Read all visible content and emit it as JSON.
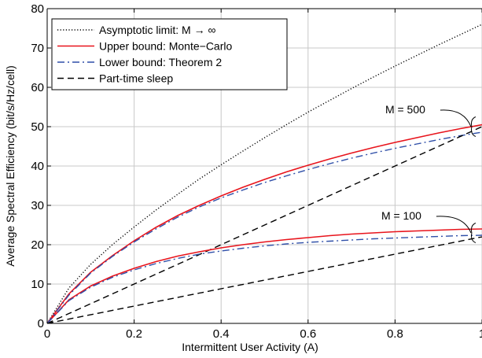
{
  "chart_data": {
    "type": "line",
    "xlabel": "Intermittent User Activity (A)",
    "ylabel": "Average Spectral Efficiency (bit/s/Hz/cell)",
    "xlim": [
      0,
      1
    ],
    "ylim": [
      0,
      80
    ],
    "x_ticks": [
      "0",
      "0.2",
      "0.4",
      "0.6",
      "0.8",
      "1"
    ],
    "y_ticks": [
      "0",
      "10",
      "20",
      "30",
      "40",
      "50",
      "60",
      "70",
      "80"
    ],
    "grid": true,
    "legend_position": "top-left",
    "legend": [
      {
        "label": "Asymptotic limit: M → ∞",
        "color": "#000000",
        "style": "dotted"
      },
      {
        "label": "Upper bound: Monte−Carlo",
        "color": "#e8141c",
        "style": "solid"
      },
      {
        "label": "Lower bound: Theorem 2",
        "color": "#2f4fa8",
        "style": "dashdot"
      },
      {
        "label": "Part-time sleep",
        "color": "#000000",
        "style": "dashed"
      }
    ],
    "annotations": [
      {
        "text": "M = 500",
        "x": 0.98,
        "y": 50
      },
      {
        "text": "M = 100",
        "x": 0.98,
        "y": 23
      }
    ],
    "series": [
      {
        "name": "Asymptotic limit: M → ∞",
        "color": "#000000",
        "style": "dotted",
        "x": [
          0,
          0.05,
          0.1,
          0.15,
          0.2,
          0.25,
          0.3,
          0.35,
          0.4,
          0.45,
          0.5,
          0.55,
          0.6,
          0.65,
          0.7,
          0.75,
          0.8,
          0.85,
          0.9,
          0.95,
          1.0
        ],
        "y": [
          0,
          9.0,
          15.0,
          20.0,
          24.5,
          28.8,
          32.8,
          36.7,
          40.3,
          43.8,
          47.2,
          50.5,
          53.7,
          56.7,
          59.7,
          62.6,
          65.4,
          68.1,
          70.8,
          73.4,
          76.0
        ]
      },
      {
        "name": "Upper bound: Monte−Carlo (M = 500)",
        "color": "#e8141c",
        "style": "solid",
        "x": [
          0,
          0.05,
          0.1,
          0.15,
          0.2,
          0.25,
          0.3,
          0.35,
          0.4,
          0.45,
          0.5,
          0.55,
          0.6,
          0.65,
          0.7,
          0.75,
          0.8,
          0.85,
          0.9,
          0.95,
          1.0
        ],
        "y": [
          0,
          7.5,
          13.0,
          17.2,
          21.0,
          24.4,
          27.4,
          30.0,
          32.4,
          34.6,
          36.6,
          38.5,
          40.2,
          41.8,
          43.3,
          44.7,
          46.0,
          47.2,
          48.4,
          49.5,
          50.5
        ]
      },
      {
        "name": "Lower bound: Theorem 2 (M = 500)",
        "color": "#2f4fa8",
        "style": "dashdot",
        "x": [
          0,
          0.05,
          0.1,
          0.15,
          0.2,
          0.25,
          0.3,
          0.35,
          0.4,
          0.45,
          0.5,
          0.55,
          0.6,
          0.65,
          0.7,
          0.75,
          0.8,
          0.85,
          0.9,
          0.95,
          1.0
        ],
        "y": [
          0,
          7.2,
          12.8,
          17.0,
          20.7,
          24.0,
          27.0,
          29.6,
          31.9,
          33.9,
          35.8,
          37.5,
          39.1,
          40.6,
          42.0,
          43.3,
          44.5,
          45.6,
          46.7,
          47.7,
          48.6
        ]
      },
      {
        "name": "Part-time sleep (M = 500)",
        "color": "#000000",
        "style": "dashed",
        "x": [
          0,
          0.2,
          0.4,
          0.6,
          0.8,
          1.0
        ],
        "y": [
          0,
          10.0,
          20.0,
          30.0,
          40.0,
          50.0
        ]
      },
      {
        "name": "Upper bound: Monte−Carlo (M = 100)",
        "color": "#e8141c",
        "style": "solid",
        "x": [
          0,
          0.05,
          0.1,
          0.15,
          0.2,
          0.25,
          0.3,
          0.35,
          0.4,
          0.45,
          0.5,
          0.55,
          0.6,
          0.65,
          0.7,
          0.75,
          0.8,
          0.85,
          0.9,
          0.95,
          1.0
        ],
        "y": [
          0,
          6.0,
          9.5,
          12.0,
          14.0,
          15.7,
          17.1,
          18.2,
          19.2,
          20.0,
          20.7,
          21.3,
          21.8,
          22.3,
          22.7,
          23.0,
          23.3,
          23.5,
          23.7,
          23.9,
          24.0
        ]
      },
      {
        "name": "Lower bound: Theorem 2 (M = 100)",
        "color": "#2f4fa8",
        "style": "dashdot",
        "x": [
          0,
          0.05,
          0.1,
          0.15,
          0.2,
          0.25,
          0.3,
          0.35,
          0.4,
          0.45,
          0.5,
          0.55,
          0.6,
          0.65,
          0.7,
          0.75,
          0.8,
          0.85,
          0.9,
          0.95,
          1.0
        ],
        "y": [
          0,
          5.8,
          9.2,
          11.7,
          13.6,
          15.2,
          16.5,
          17.6,
          18.4,
          19.1,
          19.7,
          20.2,
          20.6,
          20.9,
          21.2,
          21.5,
          21.7,
          21.9,
          22.1,
          22.3,
          22.4
        ]
      },
      {
        "name": "Part-time sleep (M = 100)",
        "color": "#000000",
        "style": "dashed",
        "x": [
          0,
          0.2,
          0.4,
          0.6,
          0.8,
          1.0
        ],
        "y": [
          0,
          4.4,
          8.8,
          13.2,
          17.6,
          22.0
        ]
      }
    ]
  }
}
